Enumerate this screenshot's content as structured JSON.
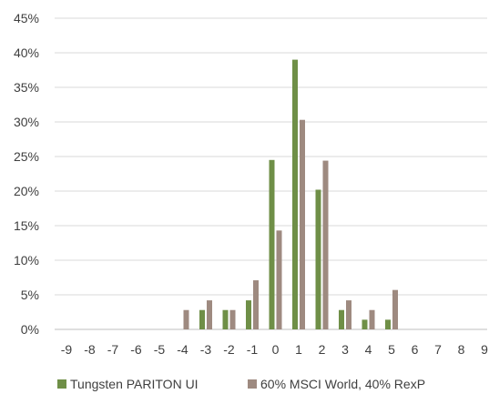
{
  "chart_data": {
    "type": "bar",
    "categories": [
      "-9",
      "-8",
      "-7",
      "-6",
      "-5",
      "-4",
      "-3",
      "-2",
      "-1",
      "0",
      "1",
      "2",
      "3",
      "4",
      "5",
      "6",
      "7",
      "8",
      "9"
    ],
    "series": [
      {
        "name": "Tungsten PARITON UI",
        "color": "#6f8f47",
        "values": [
          0,
          0,
          0,
          0,
          0,
          0,
          0.028,
          0.028,
          0.042,
          0.245,
          0.39,
          0.202,
          0.028,
          0.014,
          0.014,
          0,
          0,
          0,
          0
        ]
      },
      {
        "name": "60% MSCI World, 40% RexP",
        "color": "#9e8a80",
        "values": [
          0,
          0,
          0,
          0,
          0,
          0.028,
          0.042,
          0.028,
          0.071,
          0.143,
          0.303,
          0.244,
          0.042,
          0.028,
          0.057,
          0,
          0,
          0,
          0
        ]
      }
    ],
    "y_ticks": [
      "0%",
      "5%",
      "10%",
      "15%",
      "20%",
      "25%",
      "30%",
      "35%",
      "40%",
      "45%"
    ],
    "ylim": [
      0,
      0.45
    ],
    "grid": true,
    "legend_position": "bottom"
  }
}
